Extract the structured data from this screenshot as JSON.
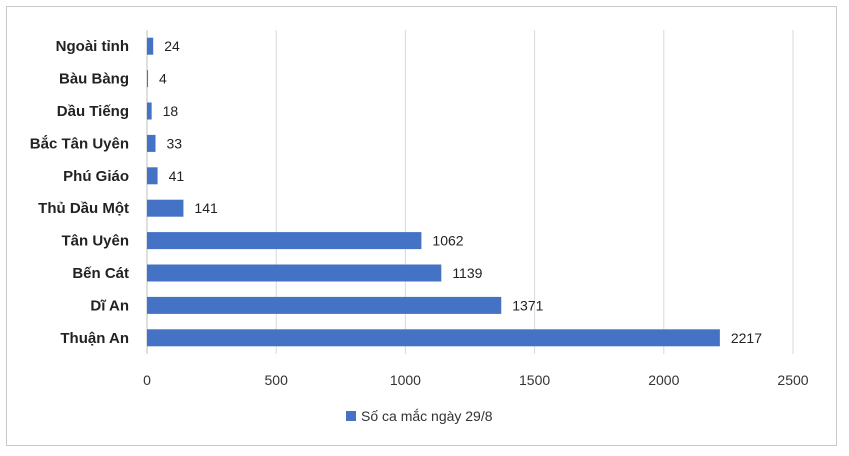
{
  "chart_data": {
    "type": "bar",
    "orientation": "horizontal",
    "categories": [
      "Ngoài tỉnh",
      "Bàu Bàng",
      "Dầu Tiếng",
      "Bắc Tân Uyên",
      "Phú Giáo",
      "Thủ Dầu Một",
      "Tân Uyên",
      "Bến Cát",
      "Dĩ An",
      "Thuận An"
    ],
    "series": [
      {
        "name": "Số ca mắc ngày 29/8",
        "values": [
          24,
          4,
          18,
          33,
          41,
          141,
          1062,
          1139,
          1371,
          2217
        ],
        "color": "#4472c4"
      }
    ],
    "xlim": [
      0,
      2500
    ],
    "xticks": [
      "0",
      "500",
      "1000",
      "1500",
      "2000",
      "2500"
    ],
    "grid": "vertical",
    "legend_position": "bottom"
  }
}
